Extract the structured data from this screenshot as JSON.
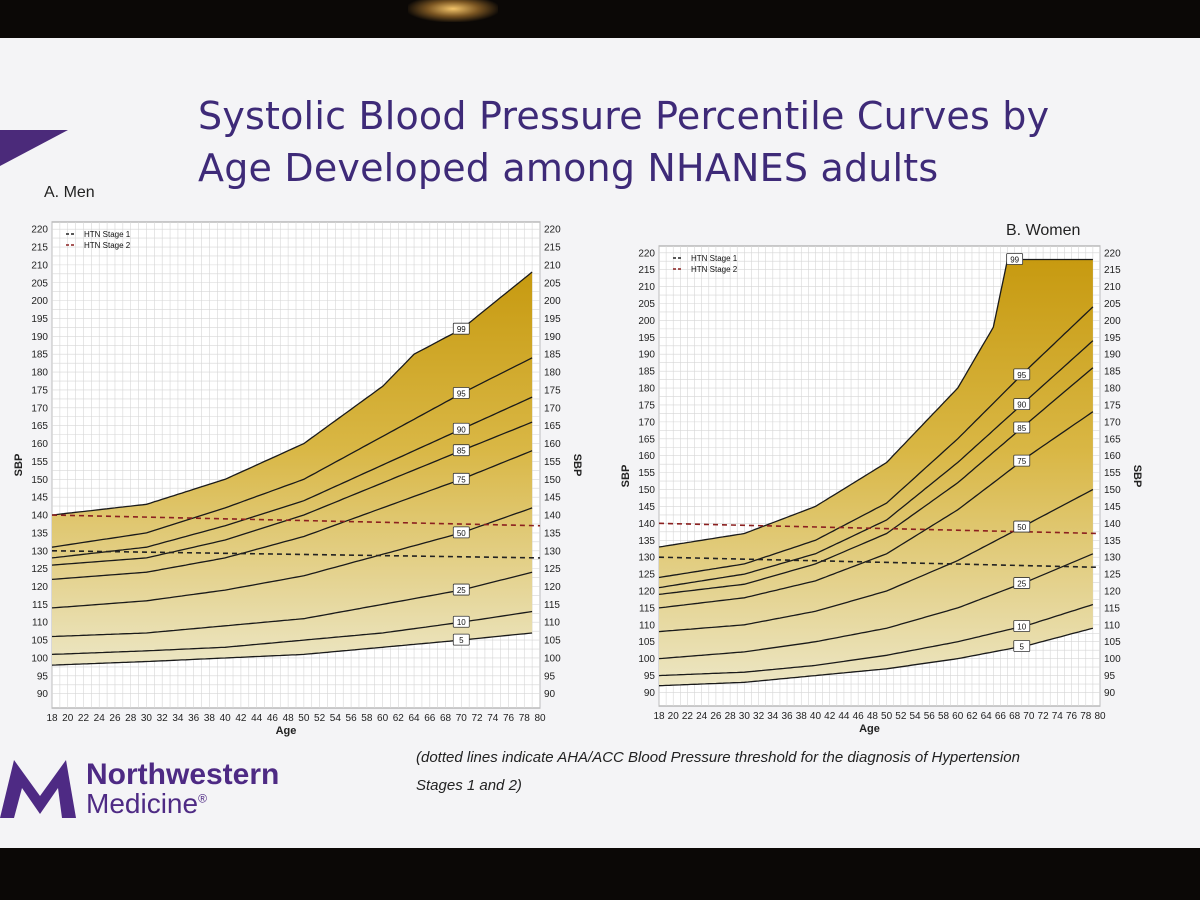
{
  "title": "Systolic Blood Pressure Percentile Curves by Age Developed among NHANES adults",
  "note": "(dotted lines indicate AHA/ACC Blood Pressure threshold for the diagnosis of Hypertension Stages 1 and 2)",
  "logo": {
    "line1": "Northwestern",
    "line2": "Medicine",
    "mark": "®"
  },
  "colors": {
    "fill_dark": "#c79a10",
    "fill_light": "#ece6c4",
    "stage1": "#222222",
    "stage2": "#8b2020",
    "title": "#3e2a78",
    "brand": "#4e2a84"
  },
  "chart_data": [
    {
      "type": "line",
      "panel_label": "A. Men",
      "xlabel": "Age",
      "ylabel": "SBP",
      "ylabel_right": "SBP",
      "x_ticks": [
        18,
        20,
        22,
        24,
        26,
        28,
        30,
        32,
        34,
        36,
        38,
        40,
        42,
        44,
        46,
        48,
        50,
        52,
        54,
        56,
        58,
        60,
        62,
        64,
        66,
        68,
        70,
        72,
        74,
        76,
        78,
        80
      ],
      "xlim": [
        18,
        80
      ],
      "ylim": [
        86,
        222
      ],
      "y_ticks_left": [
        90,
        95,
        100,
        105,
        110,
        115,
        120,
        125,
        130,
        135,
        140,
        145,
        150,
        155,
        160,
        165,
        170,
        175,
        180,
        185,
        190,
        195,
        200,
        205,
        210,
        215,
        220
      ],
      "y_ticks_right": [
        90,
        95,
        100,
        105,
        110,
        115,
        120,
        125,
        130,
        135,
        140,
        145,
        150,
        155,
        160,
        165,
        170,
        175,
        180,
        185,
        190,
        195,
        200,
        205,
        210,
        215,
        220
      ],
      "legend": [
        "HTN Stage 1",
        "HTN Stage 2"
      ],
      "legend_position": "top-left",
      "thresholds": [
        {
          "name": "HTN Stage 1",
          "x": [
            18,
            80
          ],
          "y": [
            130,
            128
          ]
        },
        {
          "name": "HTN Stage 2",
          "x": [
            18,
            80
          ],
          "y": [
            140,
            137
          ]
        }
      ],
      "series": [
        {
          "name": "5",
          "x": [
            18,
            30,
            40,
            50,
            60,
            70,
            79
          ],
          "y": [
            98,
            99,
            100,
            101,
            103,
            105,
            107
          ],
          "label_x": 70
        },
        {
          "name": "10",
          "x": [
            18,
            30,
            40,
            50,
            60,
            70,
            79
          ],
          "y": [
            101,
            102,
            103,
            105,
            107,
            110,
            113
          ],
          "label_x": 70
        },
        {
          "name": "25",
          "x": [
            18,
            30,
            40,
            50,
            60,
            70,
            79
          ],
          "y": [
            106,
            107,
            109,
            111,
            115,
            119,
            124
          ],
          "label_x": 70
        },
        {
          "name": "50",
          "x": [
            18,
            30,
            40,
            50,
            60,
            70,
            79
          ],
          "y": [
            114,
            116,
            119,
            123,
            129,
            135,
            142
          ],
          "label_x": 70
        },
        {
          "name": "75",
          "x": [
            18,
            30,
            40,
            50,
            60,
            70,
            79
          ],
          "y": [
            122,
            124,
            128,
            134,
            142,
            150,
            158
          ],
          "label_x": 70
        },
        {
          "name": "85",
          "x": [
            18,
            30,
            40,
            50,
            60,
            70,
            79
          ],
          "y": [
            126,
            128,
            133,
            140,
            149,
            158,
            166
          ],
          "label_x": 70
        },
        {
          "name": "90",
          "x": [
            18,
            30,
            40,
            50,
            60,
            70,
            79
          ],
          "y": [
            128,
            131,
            137,
            144,
            154,
            164,
            173
          ],
          "label_x": 70
        },
        {
          "name": "95",
          "x": [
            18,
            30,
            40,
            50,
            60,
            70,
            79
          ],
          "y": [
            131,
            135,
            142,
            150,
            162,
            174,
            184
          ],
          "label_x": 70
        },
        {
          "name": "99",
          "x": [
            18,
            30,
            40,
            50,
            60,
            64,
            70,
            79
          ],
          "y": [
            140,
            143,
            150,
            160,
            176,
            185,
            192,
            208
          ],
          "label_x": 70
        }
      ]
    },
    {
      "type": "line",
      "panel_label": "B. Women",
      "xlabel": "Age",
      "ylabel": "SBP",
      "ylabel_right": "SBP",
      "x_ticks": [
        18,
        20,
        22,
        24,
        26,
        28,
        30,
        32,
        34,
        36,
        38,
        40,
        42,
        44,
        46,
        48,
        50,
        52,
        54,
        56,
        58,
        60,
        62,
        64,
        66,
        68,
        70,
        72,
        74,
        76,
        78,
        80
      ],
      "xlim": [
        18,
        80
      ],
      "ylim": [
        86,
        222
      ],
      "y_ticks_left": [
        90,
        95,
        100,
        105,
        110,
        115,
        120,
        125,
        130,
        135,
        140,
        145,
        150,
        155,
        160,
        165,
        170,
        175,
        180,
        185,
        190,
        195,
        200,
        205,
        210,
        215,
        220
      ],
      "y_ticks_right": [
        90,
        95,
        100,
        105,
        110,
        115,
        120,
        125,
        130,
        135,
        140,
        145,
        150,
        155,
        160,
        165,
        170,
        175,
        180,
        185,
        190,
        195,
        200,
        205,
        210,
        215,
        220
      ],
      "legend": [
        "HTN Stage 1",
        "HTN Stage 2"
      ],
      "legend_position": "top-left",
      "thresholds": [
        {
          "name": "HTN Stage 1",
          "x": [
            18,
            80
          ],
          "y": [
            130,
            127
          ]
        },
        {
          "name": "HTN Stage 2",
          "x": [
            18,
            80
          ],
          "y": [
            140,
            137
          ]
        }
      ],
      "series": [
        {
          "name": "5",
          "x": [
            18,
            30,
            40,
            50,
            60,
            70,
            79
          ],
          "y": [
            92,
            93,
            95,
            97,
            100,
            104,
            109
          ],
          "label_x": 69
        },
        {
          "name": "10",
          "x": [
            18,
            30,
            40,
            50,
            60,
            70,
            79
          ],
          "y": [
            95,
            96,
            98,
            101,
            105,
            110,
            116
          ],
          "label_x": 69
        },
        {
          "name": "25",
          "x": [
            18,
            30,
            40,
            50,
            60,
            70,
            79
          ],
          "y": [
            100,
            102,
            105,
            109,
            115,
            123,
            131
          ],
          "label_x": 69
        },
        {
          "name": "50",
          "x": [
            18,
            30,
            40,
            50,
            60,
            70,
            79
          ],
          "y": [
            108,
            110,
            114,
            120,
            129,
            140,
            150
          ],
          "label_x": 69
        },
        {
          "name": "75",
          "x": [
            18,
            30,
            40,
            50,
            60,
            70,
            79
          ],
          "y": [
            115,
            118,
            123,
            131,
            144,
            160,
            173
          ],
          "label_x": 69
        },
        {
          "name": "85",
          "x": [
            18,
            30,
            40,
            50,
            60,
            70,
            79
          ],
          "y": [
            119,
            122,
            128,
            137,
            152,
            170,
            186
          ],
          "label_x": 69
        },
        {
          "name": "90",
          "x": [
            18,
            30,
            40,
            50,
            60,
            70,
            79
          ],
          "y": [
            121,
            125,
            131,
            141,
            158,
            177,
            194
          ],
          "label_x": 69
        },
        {
          "name": "95",
          "x": [
            18,
            30,
            40,
            50,
            60,
            70,
            79
          ],
          "y": [
            124,
            128,
            135,
            146,
            165,
            186,
            204
          ],
          "label_x": 69
        },
        {
          "name": "99",
          "x": [
            18,
            30,
            40,
            50,
            60,
            65,
            67,
            79
          ],
          "y": [
            133,
            137,
            145,
            158,
            180,
            198,
            218,
            218
          ],
          "label_x": 68
        }
      ]
    }
  ]
}
